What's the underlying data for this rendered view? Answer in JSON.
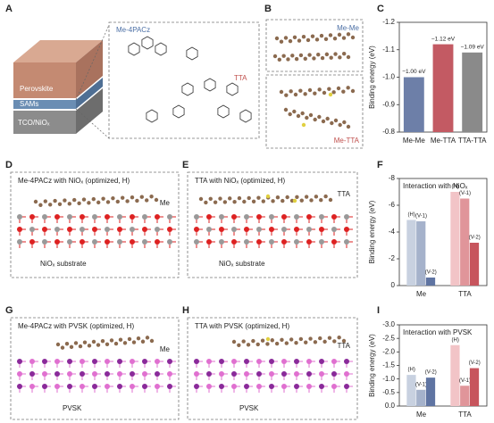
{
  "panel_labels": [
    "A",
    "B",
    "C",
    "D",
    "E",
    "F",
    "G",
    "H",
    "I"
  ],
  "panel_a": {
    "molecule_1": "Me-4PACz",
    "molecule_2": "TTA",
    "layers": [
      "Perovskite",
      "SAMs",
      "TCO/NiOₓ"
    ]
  },
  "panel_b": {
    "top": "Me-Me",
    "bottom": "Me-TTA"
  },
  "panel_d": {
    "title": "Me-4PACz with NiOₓ (optimized, H)",
    "molecule": "Me",
    "substrate": "NiOₓ substrate"
  },
  "panel_e": {
    "title": "TTA with NiOₓ (optimized, H)",
    "molecule": "TTA",
    "substrate": "NiOₓ substrate"
  },
  "panel_g": {
    "title": "Me-4PACz with PVSK (optimized, H)",
    "molecule": "Me",
    "substrate": "PVSK"
  },
  "panel_h": {
    "title": "TTA with PVSK (optimized, H)",
    "molecule": "TTA",
    "substrate": "PVSK"
  },
  "chart_data": [
    {
      "type": "bar",
      "ylabel": "Binding energy (eV)",
      "categories": [
        "Me-Me",
        "Me-TTA",
        "TTA-TTA"
      ],
      "values": [
        -1.0,
        -1.12,
        -1.09
      ],
      "value_labels": [
        "−1.00 eV",
        "−1.12 eV",
        "−1.09 eV"
      ],
      "colors": [
        "#6d7fa8",
        "#c35a63",
        "#8a8a8a"
      ],
      "ylim": [
        -0.8,
        -1.2
      ],
      "yticks": [
        -0.8,
        -0.9,
        {
          "value": -1,
          "label": "-1.0"
        },
        -1.1,
        -1.2
      ]
    },
    {
      "type": "bar",
      "title": "Interaction with NiOₓ",
      "ylabel": "Binding energy (eV)",
      "categories": [
        "Me",
        "TTA"
      ],
      "series": [
        {
          "name": "(H)",
          "colors": [
            "#c8d1e0",
            "#f2c4c7"
          ],
          "values": [
            -4.9,
            -7.0
          ]
        },
        {
          "name": "(V-1)",
          "colors": [
            "#a5b2cb",
            "#e0959a"
          ],
          "values": [
            -4.8,
            -6.5
          ]
        },
        {
          "name": "(V-2)",
          "colors": [
            "#5f74a2",
            "#c7555d"
          ],
          "values": [
            -0.6,
            -3.2
          ]
        }
      ],
      "ylim": [
        0,
        -8
      ],
      "yticks": [
        0,
        -2,
        -4,
        -6,
        -8
      ]
    },
    {
      "type": "bar",
      "title": "Interaction with PVSK",
      "ylabel": "Binding energy (eV)",
      "categories": [
        "Me",
        "TTA"
      ],
      "series": [
        {
          "name": "(H)",
          "colors": [
            "#c8d1e0",
            "#f2c4c7"
          ],
          "values": [
            -1.15,
            -2.25
          ]
        },
        {
          "name": "(V-1)",
          "colors": [
            "#a5b2cb",
            "#e0959a"
          ],
          "values": [
            -0.6,
            -0.75
          ]
        },
        {
          "name": "(V-2)",
          "colors": [
            "#5f74a2",
            "#c7555d"
          ],
          "values": [
            -1.05,
            -1.4
          ]
        }
      ],
      "ylim": [
        0,
        -3
      ],
      "yticks": [
        {
          "value": 0,
          "label": "0.0"
        },
        -0.5,
        {
          "value": -1,
          "label": "-1.0"
        },
        -1.5,
        {
          "value": -2,
          "label": "-2.0"
        },
        -2.5,
        {
          "value": -3,
          "label": "-3.0"
        }
      ]
    }
  ]
}
